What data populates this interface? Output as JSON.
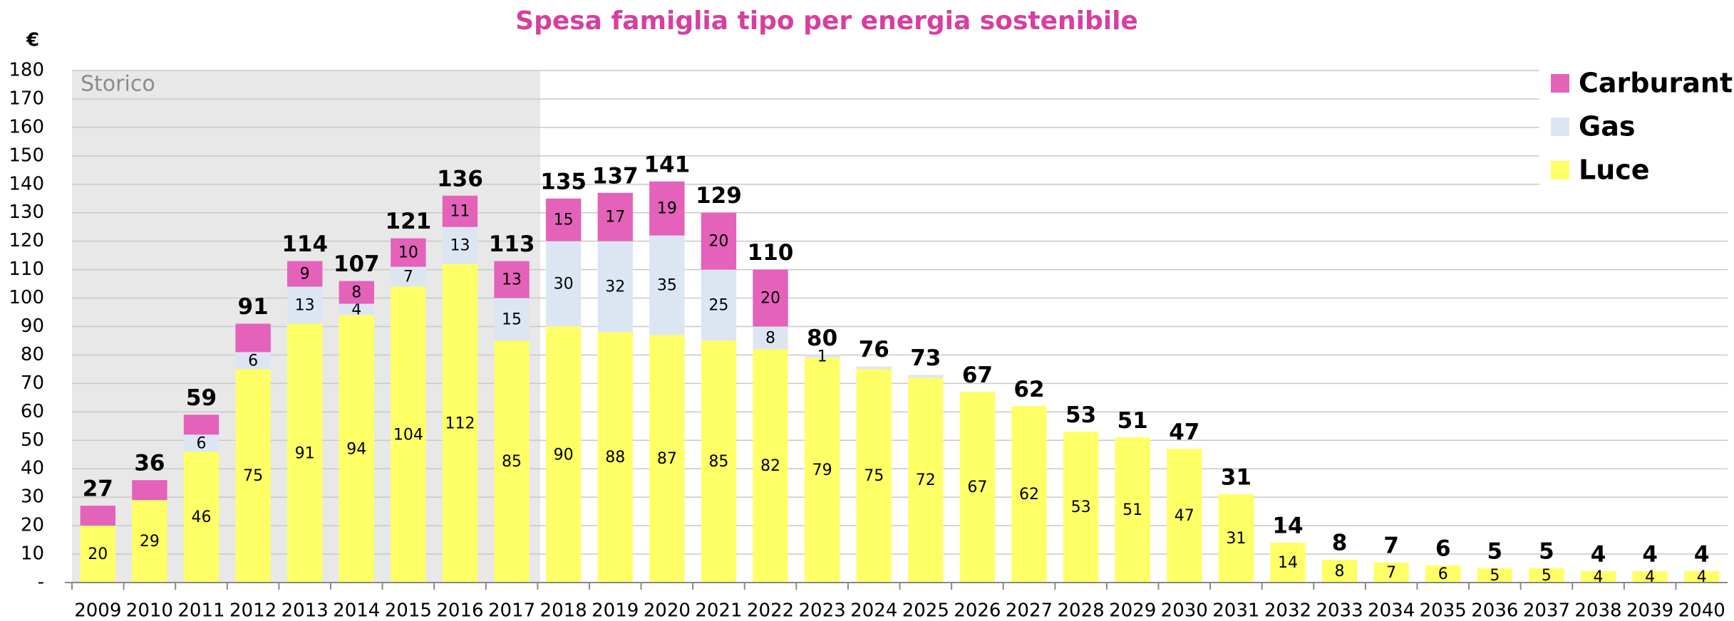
{
  "chart_data": {
    "type": "stacked_bar",
    "title": "Spesa famiglia tipo per energia sostenibile",
    "y_label": "€",
    "shade": {
      "label": "Storico",
      "from": "2009",
      "to": "2017"
    },
    "categories": [
      "2009",
      "2010",
      "2011",
      "2012",
      "2013",
      "2014",
      "2015",
      "2016",
      "2017",
      "2018",
      "2019",
      "2020",
      "2021",
      "2022",
      "2023",
      "2024",
      "2025",
      "2026",
      "2027",
      "2028",
      "2029",
      "2030",
      "2031",
      "2032",
      "2033",
      "2034",
      "2035",
      "2036",
      "2037",
      "2038",
      "2039",
      "2040"
    ],
    "series": [
      {
        "name": "Luce",
        "color": "#ffff66",
        "values": [
          20,
          29,
          46,
          75,
          91,
          94,
          104,
          112,
          85,
          90,
          88,
          87,
          85,
          82,
          79,
          75,
          72,
          67,
          62,
          53,
          51,
          47,
          31,
          14,
          8,
          7,
          6,
          5,
          5,
          4,
          4,
          4
        ],
        "value_labels": [
          "20",
          "29",
          "46",
          "75",
          "91",
          "94",
          "104",
          "112",
          "85",
          "90",
          "88",
          "87",
          "85",
          "82",
          "79",
          "75",
          "72",
          "67",
          "62",
          "53",
          "51",
          "47",
          "31",
          "14",
          "8",
          "7",
          "6",
          "5",
          "5",
          "4",
          "4",
          "4"
        ]
      },
      {
        "name": "Gas",
        "color": "#dce6f2",
        "values": [
          0,
          0,
          6,
          6,
          13,
          4,
          7,
          13,
          15,
          30,
          32,
          35,
          25,
          8,
          1,
          1,
          1,
          0,
          0,
          0,
          0,
          0,
          0,
          0,
          0,
          0,
          0,
          0,
          0,
          0,
          0,
          0
        ],
        "value_labels": [
          null,
          null,
          "6",
          "6",
          "13",
          "4",
          "7",
          "13",
          "15",
          "30",
          "32",
          "35",
          "25",
          "8",
          "1",
          null,
          null,
          null,
          null,
          null,
          null,
          null,
          null,
          null,
          null,
          null,
          null,
          null,
          null,
          null,
          null,
          null
        ]
      },
      {
        "name": "Carburanti",
        "color": "#e462b9",
        "values": [
          7,
          7,
          7,
          10,
          9,
          8,
          10,
          11,
          13,
          15,
          17,
          19,
          20,
          20,
          0,
          0,
          0,
          0,
          0,
          0,
          0,
          0,
          0,
          0,
          0,
          0,
          0,
          0,
          0,
          0,
          0,
          0
        ],
        "value_labels": [
          null,
          null,
          null,
          null,
          "9",
          "8",
          "10",
          "11",
          "13",
          "15",
          "17",
          "19",
          "20",
          "20",
          null,
          null,
          null,
          null,
          null,
          null,
          null,
          null,
          null,
          null,
          null,
          null,
          null,
          null,
          null,
          null,
          null,
          null
        ]
      }
    ],
    "totals": [
      27,
      36,
      59,
      91,
      114,
      107,
      121,
      136,
      113,
      135,
      137,
      141,
      129,
      110,
      80,
      76,
      73,
      67,
      62,
      53,
      51,
      47,
      31,
      14,
      8,
      7,
      6,
      5,
      5,
      4,
      4,
      4
    ],
    "ylim": [
      0,
      180
    ],
    "yticks": [
      {
        "value": 0,
        "label": "-"
      },
      10,
      20,
      30,
      40,
      50,
      60,
      70,
      80,
      90,
      100,
      110,
      120,
      130,
      140,
      150,
      160,
      170,
      180
    ],
    "grid": true,
    "legend": "top-right"
  }
}
